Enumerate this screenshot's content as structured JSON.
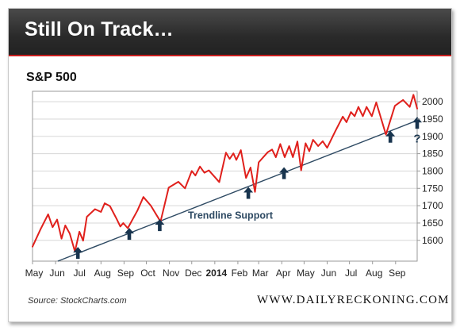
{
  "header": {
    "title": "Still On Track…"
  },
  "chart_data": {
    "type": "line",
    "title": "S&P 500",
    "ylim": [
      1540,
      2030
    ],
    "yticks": [
      1600,
      1650,
      1700,
      1750,
      1800,
      1850,
      1900,
      1950,
      2000
    ],
    "xlim": [
      "2013-05-01",
      "2014-09-30"
    ],
    "xticks": [
      {
        "label": "May",
        "date": "2013-05-01",
        "bold": false
      },
      {
        "label": "Jun",
        "date": "2013-06-01",
        "bold": false
      },
      {
        "label": "Jul",
        "date": "2013-07-01",
        "bold": false
      },
      {
        "label": "Aug",
        "date": "2013-08-01",
        "bold": false
      },
      {
        "label": "Sep",
        "date": "2013-09-01",
        "bold": false
      },
      {
        "label": "Oct",
        "date": "2013-10-01",
        "bold": false
      },
      {
        "label": "Nov",
        "date": "2013-11-01",
        "bold": false
      },
      {
        "label": "Dec",
        "date": "2013-12-01",
        "bold": false
      },
      {
        "label": "2014",
        "date": "2014-01-01",
        "bold": true
      },
      {
        "label": "Feb",
        "date": "2014-02-01",
        "bold": false
      },
      {
        "label": "Mar",
        "date": "2014-03-01",
        "bold": false
      },
      {
        "label": "Apr",
        "date": "2014-04-01",
        "bold": false
      },
      {
        "label": "May",
        "date": "2014-05-01",
        "bold": false
      },
      {
        "label": "Jun",
        "date": "2014-06-01",
        "bold": false
      },
      {
        "label": "Jul",
        "date": "2014-07-01",
        "bold": false
      },
      {
        "label": "Aug",
        "date": "2014-08-01",
        "bold": false
      },
      {
        "label": "Sep",
        "date": "2014-09-01",
        "bold": false
      }
    ],
    "series": [
      {
        "color": "#e0201c",
        "points": [
          [
            "2013-05-01",
            1582
          ],
          [
            "2013-05-12",
            1633
          ],
          [
            "2013-05-22",
            1675
          ],
          [
            "2013-05-28",
            1638
          ],
          [
            "2013-06-03",
            1660
          ],
          [
            "2013-06-09",
            1605
          ],
          [
            "2013-06-14",
            1643
          ],
          [
            "2013-06-20",
            1620
          ],
          [
            "2013-06-27",
            1568
          ],
          [
            "2013-07-03",
            1625
          ],
          [
            "2013-07-08",
            1599
          ],
          [
            "2013-07-13",
            1668
          ],
          [
            "2013-07-24",
            1690
          ],
          [
            "2013-08-01",
            1682
          ],
          [
            "2013-08-06",
            1707
          ],
          [
            "2013-08-13",
            1699
          ],
          [
            "2013-08-22",
            1662
          ],
          [
            "2013-08-27",
            1640
          ],
          [
            "2013-08-31",
            1650
          ],
          [
            "2013-09-06",
            1635
          ],
          [
            "2013-09-19",
            1686
          ],
          [
            "2013-09-27",
            1725
          ],
          [
            "2013-10-07",
            1700
          ],
          [
            "2013-10-20",
            1654
          ],
          [
            "2013-10-31",
            1752
          ],
          [
            "2013-11-13",
            1769
          ],
          [
            "2013-11-22",
            1750
          ],
          [
            "2013-12-01",
            1800
          ],
          [
            "2013-12-06",
            1787
          ],
          [
            "2013-12-12",
            1813
          ],
          [
            "2013-12-18",
            1795
          ],
          [
            "2013-12-24",
            1802
          ],
          [
            "2014-01-07",
            1768
          ],
          [
            "2014-01-16",
            1853
          ],
          [
            "2014-01-21",
            1835
          ],
          [
            "2014-01-26",
            1851
          ],
          [
            "2014-01-30",
            1832
          ],
          [
            "2014-02-05",
            1860
          ],
          [
            "2014-02-12",
            1780
          ],
          [
            "2014-02-18",
            1810
          ],
          [
            "2014-02-24",
            1740
          ],
          [
            "2014-03-01",
            1825
          ],
          [
            "2014-03-13",
            1854
          ],
          [
            "2014-03-19",
            1862
          ],
          [
            "2014-03-24",
            1840
          ],
          [
            "2014-03-30",
            1878
          ],
          [
            "2014-04-05",
            1840
          ],
          [
            "2014-04-11",
            1872
          ],
          [
            "2014-04-16",
            1840
          ],
          [
            "2014-04-22",
            1885
          ],
          [
            "2014-04-27",
            1802
          ],
          [
            "2014-05-03",
            1880
          ],
          [
            "2014-05-08",
            1857
          ],
          [
            "2014-05-13",
            1890
          ],
          [
            "2014-05-20",
            1872
          ],
          [
            "2014-05-26",
            1886
          ],
          [
            "2014-06-01",
            1867
          ],
          [
            "2014-06-12",
            1915
          ],
          [
            "2014-06-22",
            1957
          ],
          [
            "2014-06-27",
            1941
          ],
          [
            "2014-07-03",
            1970
          ],
          [
            "2014-07-08",
            1958
          ],
          [
            "2014-07-13",
            1985
          ],
          [
            "2014-07-19",
            1958
          ],
          [
            "2014-07-24",
            1985
          ],
          [
            "2014-07-31",
            1958
          ],
          [
            "2014-08-06",
            1998
          ],
          [
            "2014-08-19",
            1905
          ],
          [
            "2014-08-31",
            1988
          ],
          [
            "2014-09-11",
            2005
          ],
          [
            "2014-09-20",
            1985
          ],
          [
            "2014-09-25",
            2020
          ],
          [
            "2014-09-30",
            1980
          ]
        ]
      }
    ],
    "trendline": {
      "color": "#2e4a63",
      "start": [
        "2013-06-04",
        1540
      ],
      "end": [
        "2014-09-30",
        1946
      ],
      "label": "Trendline Support",
      "label_at": [
        "2014-01-22",
        1662
      ]
    },
    "markers": {
      "color": "#18344e",
      "arrows": [
        [
          "2013-07-01",
          1565
        ],
        [
          "2013-09-08",
          1620
        ],
        [
          "2013-10-19",
          1645
        ],
        [
          "2014-02-15",
          1738
        ],
        [
          "2014-04-04",
          1795
        ],
        [
          "2014-08-25",
          1900
        ],
        [
          "2014-09-30",
          1940
        ]
      ],
      "question": {
        "label": "?",
        "at": [
          "2014-09-30",
          1882
        ]
      }
    }
  },
  "footer": {
    "source": "Source: StockCharts.com",
    "brand": "WWW.DAILYRECKONING.COM"
  }
}
